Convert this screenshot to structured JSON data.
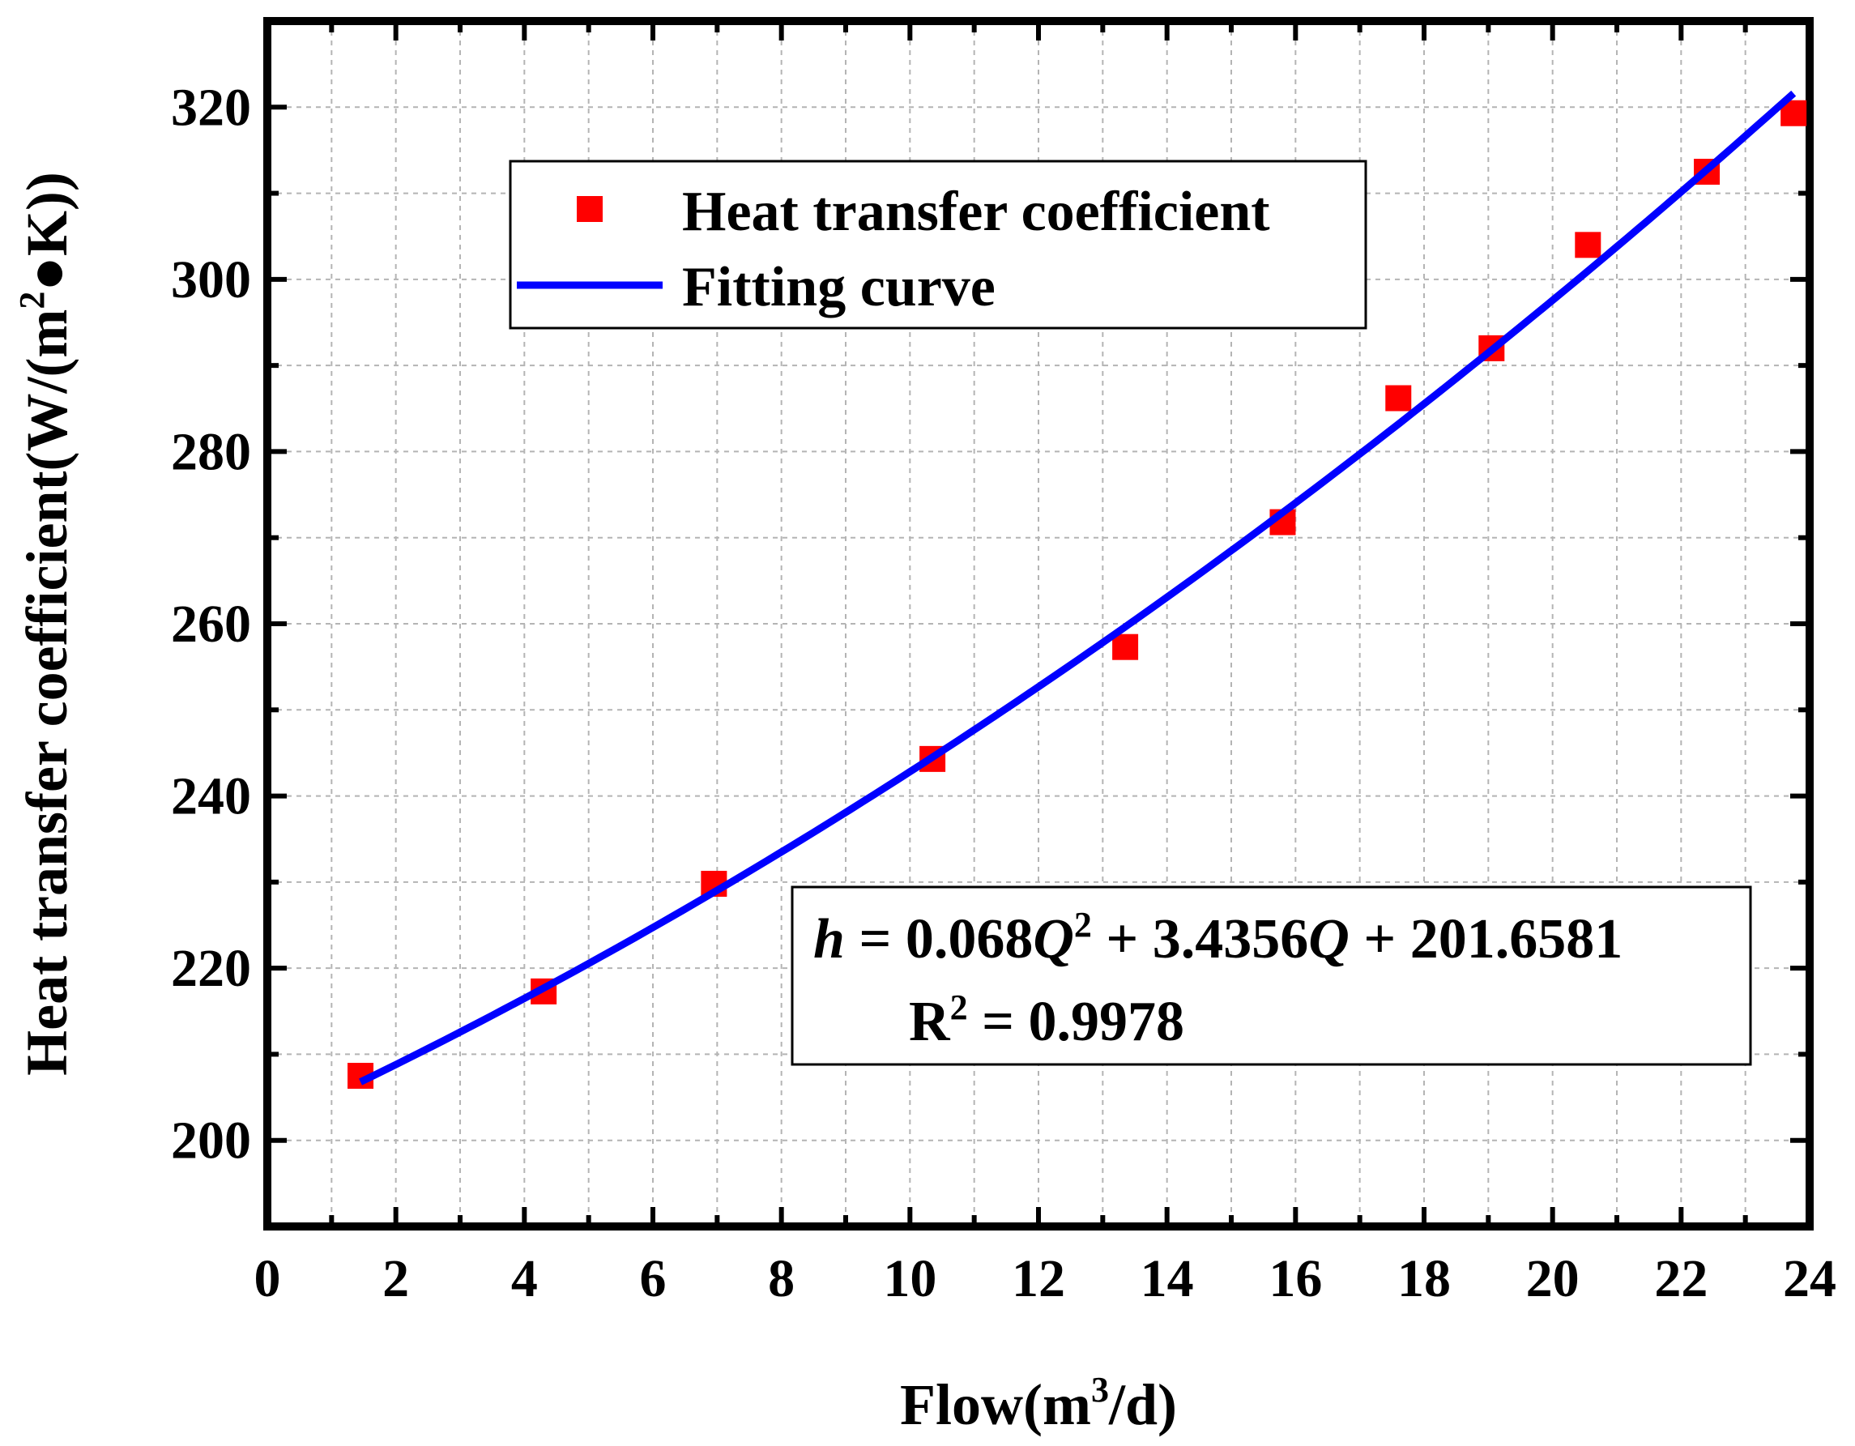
{
  "chart_data": {
    "type": "scatter",
    "title": "",
    "xlabel": "Flow(m3/d)",
    "xlabel_parts": {
      "main": "Flow(m",
      "sup": "3",
      "tail": "/d)"
    },
    "ylabel": "Heat transfer coefficient(W/(m2●K))",
    "ylabel_parts": {
      "main": "Heat transfer coefficient(W/(m",
      "sup": "2",
      "tail": "●K))"
    },
    "xlim": [
      0,
      24
    ],
    "ylim": [
      190,
      330
    ],
    "grid": true,
    "x_ticks": [
      0,
      2,
      4,
      6,
      8,
      10,
      12,
      14,
      16,
      18,
      20,
      22,
      24
    ],
    "y_ticks": [
      200,
      220,
      240,
      260,
      280,
      300,
      320
    ],
    "series": [
      {
        "name": "Heat transfer coefficient",
        "kind": "scatter",
        "marker": "square",
        "color": "#ff0000",
        "x": [
          1.45,
          4.3,
          6.95,
          10.35,
          13.35,
          15.8,
          17.6,
          19.05,
          20.55,
          22.4,
          23.75
        ],
        "y": [
          207.5,
          217.3,
          229.8,
          244.3,
          257.3,
          271.8,
          286.2,
          292.0,
          304.0,
          312.5,
          319.3
        ]
      },
      {
        "name": "Fitting curve",
        "kind": "line",
        "color": "#0000ff",
        "x_range": [
          1.45,
          23.75
        ],
        "coefficients": {
          "a": 0.068,
          "b": 3.4356,
          "c": 201.6581
        }
      }
    ],
    "legend": {
      "position": "top-left",
      "entries": [
        "Heat transfer coefficient",
        "Fitting curve"
      ]
    },
    "annotation": {
      "equation": "h = 0.068Q2 + 3.4356Q + 201.6581",
      "equation_parts": {
        "var": "h",
        "eq": " = 0.068",
        "q1": "Q",
        "sup": "2",
        "mid": " + 3.4356",
        "q2": "Q",
        "tail": " + 201.6581"
      },
      "r2": "R2 = 0.9978",
      "r2_parts": {
        "main": "R",
        "sup": "2",
        "tail": " = 0.9978"
      }
    }
  }
}
